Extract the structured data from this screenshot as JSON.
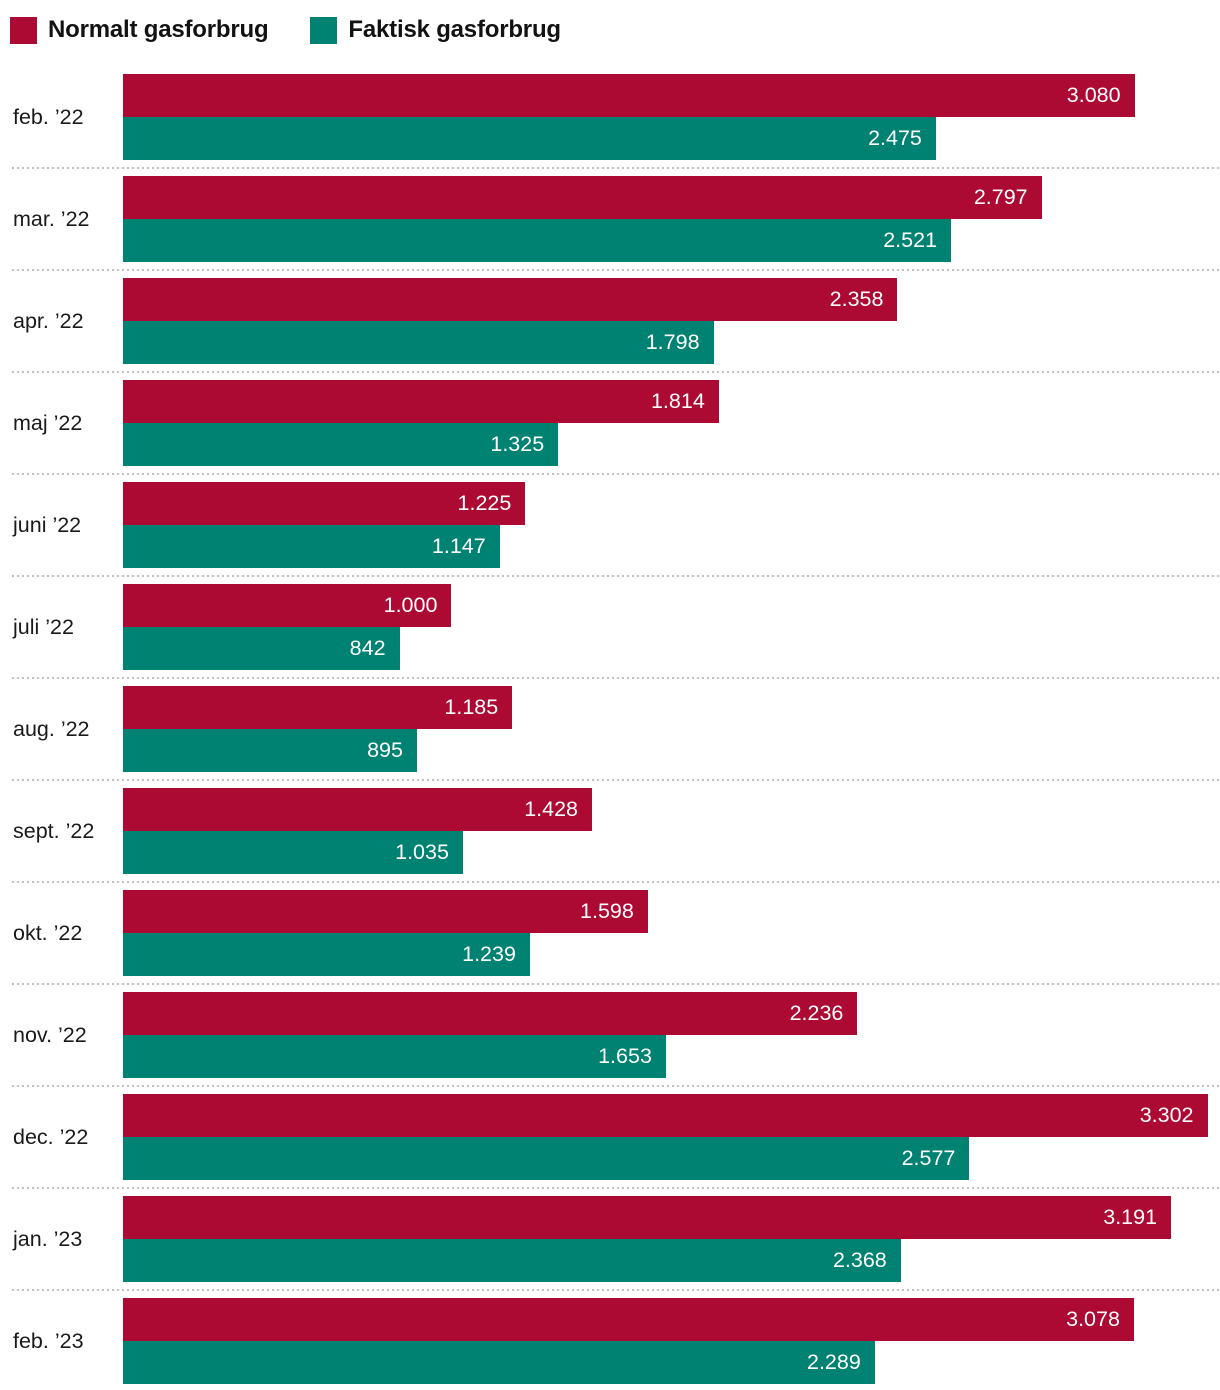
{
  "legend": {
    "items": [
      {
        "label": "Normalt gasforbrug",
        "color": "#ac0a33"
      },
      {
        "label": "Faktisk gasforbrug",
        "color": "#008273"
      }
    ]
  },
  "chart_data": {
    "type": "bar",
    "orientation": "horizontal",
    "title": "",
    "xlabel": "",
    "ylabel": "",
    "categories": [
      "feb. ’22",
      "mar. ’22",
      "apr. ’22",
      "maj ’22",
      "juni ’22",
      "juli ’22",
      "aug. ’22",
      "sept. ’22",
      "okt. ’22",
      "nov. ’22",
      "dec. ’22",
      "jan. ’23",
      "feb. ’23"
    ],
    "series": [
      {
        "name": "Normalt gasforbrug",
        "color": "#ac0a33",
        "values": [
          3080,
          2797,
          2358,
          1814,
          1225,
          1000,
          1185,
          1428,
          1598,
          2236,
          3302,
          3191,
          3078
        ],
        "value_labels": [
          "3.080",
          "2.797",
          "2.358",
          "1.814",
          "1.225",
          "1.000",
          "1.185",
          "1.428",
          "1.598",
          "2.236",
          "3.302",
          "3.191",
          "3.078"
        ]
      },
      {
        "name": "Faktisk gasforbrug",
        "color": "#008273",
        "values": [
          2475,
          2521,
          1798,
          1325,
          1147,
          842,
          895,
          1035,
          1239,
          1653,
          2577,
          2368,
          2289
        ],
        "value_labels": [
          "2.475",
          "2.521",
          "1.798",
          "1.325",
          "1.147",
          "842",
          "895",
          "1.035",
          "1.239",
          "1.653",
          "2.577",
          "2.368",
          "2.289"
        ]
      }
    ],
    "xlim": [
      0,
      3340
    ],
    "grid": "dotted-row-separators",
    "separator_color": "#c2c2c2",
    "legend_position": "top",
    "value_label_position": "inside-end",
    "value_label_color": "#ffffff"
  }
}
